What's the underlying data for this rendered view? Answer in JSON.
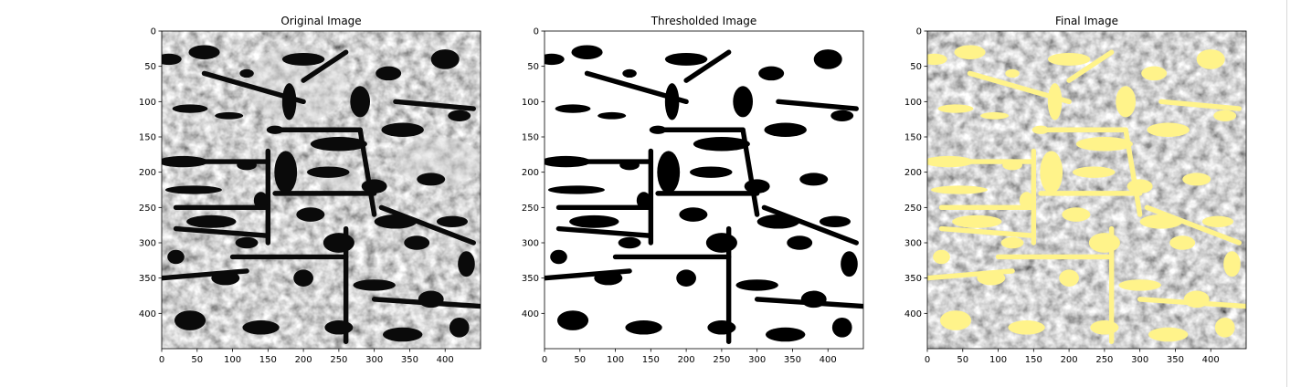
{
  "panels": [
    {
      "id": "original",
      "title": "Original Image",
      "xticks": [
        "0",
        "50",
        "100",
        "150",
        "200",
        "250",
        "300",
        "350",
        "400"
      ],
      "yticks": [
        "0",
        "50",
        "100",
        "150",
        "200",
        "250",
        "300",
        "350",
        "400"
      ]
    },
    {
      "id": "thresholded",
      "title": "Thresholded Image",
      "xticks": [
        "0",
        "50",
        "100",
        "150",
        "200",
        "250",
        "300",
        "350",
        "400"
      ],
      "yticks": [
        "0",
        "50",
        "100",
        "150",
        "200",
        "250",
        "300",
        "350",
        "400"
      ]
    },
    {
      "id": "final",
      "title": "Final Image",
      "xticks": [
        "0",
        "50",
        "100",
        "150",
        "200",
        "250",
        "300",
        "350",
        "400"
      ],
      "yticks": [
        "0",
        "50",
        "100",
        "150",
        "200",
        "250",
        "300",
        "350",
        "400"
      ]
    }
  ],
  "colors": {
    "background": "#ffffff",
    "axis": "#000000",
    "pore_dark": "#0a0a0a",
    "grain_gray": "#9a9a9a",
    "grain_light": "#d8d8d8",
    "threshold_white": "#ffffff",
    "threshold_black": "#000000",
    "highlight_yellow": "#fff38a"
  },
  "image_extent": {
    "xmax": 450,
    "ymax": 450
  }
}
